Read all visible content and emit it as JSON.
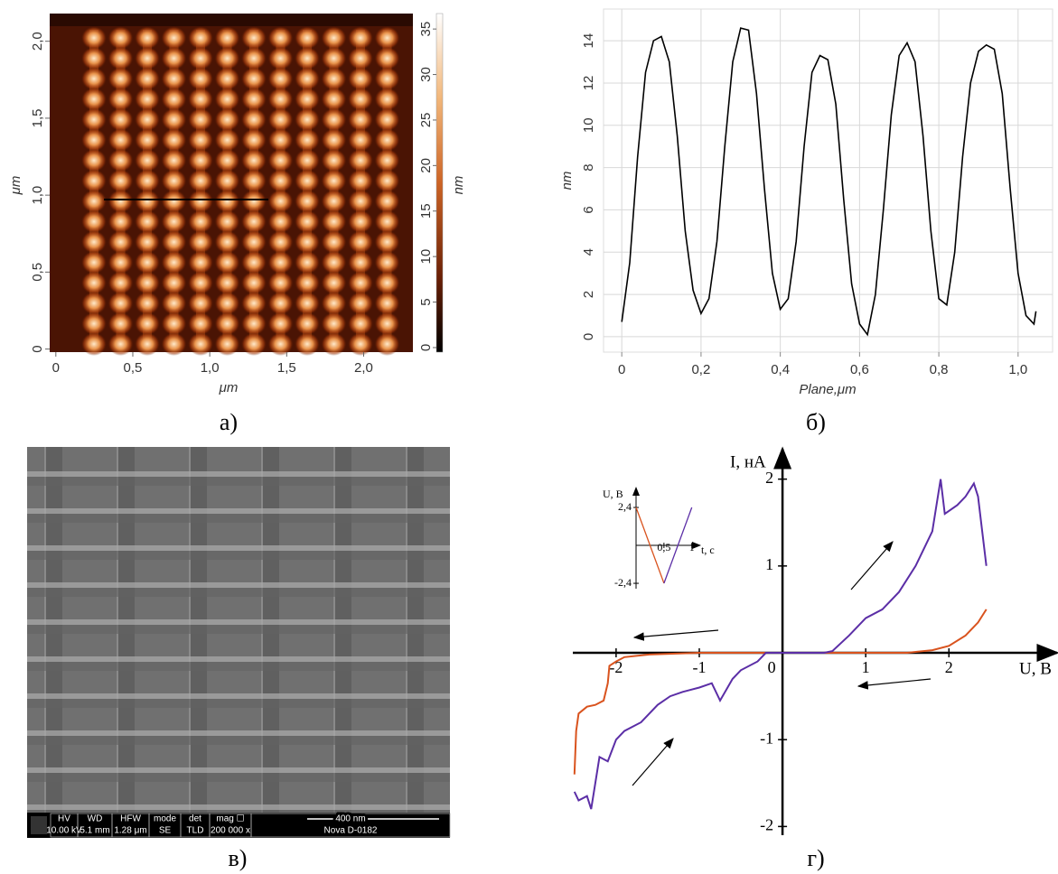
{
  "chart_data": [
    {
      "type": "line",
      "xlabel": "Plane,μm",
      "ylabel": "nm",
      "x": [
        0,
        0.02,
        0.04,
        0.06,
        0.08,
        0.1,
        0.12,
        0.14,
        0.16,
        0.18,
        0.2,
        0.22,
        0.24,
        0.26,
        0.28,
        0.3,
        0.32,
        0.34,
        0.36,
        0.38,
        0.4,
        0.42,
        0.44,
        0.46,
        0.48,
        0.5,
        0.52,
        0.54,
        0.56,
        0.58,
        0.6,
        0.62,
        0.64,
        0.66,
        0.68,
        0.7,
        0.72,
        0.74,
        0.76,
        0.78,
        0.8,
        0.82,
        0.84,
        0.86,
        0.88,
        0.9,
        0.92,
        0.94,
        0.96,
        0.98,
        1.0,
        1.02,
        1.04,
        1.045
      ],
      "series": [
        {
          "color": "#000000",
          "values": [
            0.7,
            3.5,
            8.5,
            12.5,
            14.0,
            14.2,
            13.0,
            9.5,
            5.0,
            2.2,
            1.1,
            1.8,
            4.5,
            9.0,
            13.0,
            14.6,
            14.5,
            11.5,
            7.0,
            3.0,
            1.3,
            1.8,
            4.5,
            9.0,
            12.5,
            13.3,
            13.1,
            11.0,
            6.5,
            2.5,
            0.6,
            0.1,
            2.0,
            6.0,
            10.5,
            13.3,
            13.9,
            13.0,
            9.5,
            5.0,
            1.8,
            1.5,
            4.0,
            8.5,
            12.0,
            13.5,
            13.8,
            13.6,
            11.5,
            7.0,
            3.0,
            1.0,
            0.6,
            1.2
          ]
        }
      ],
      "xlim": [
        -0.046,
        1.087
      ],
      "ylim": [
        -0.73,
        15.5
      ],
      "xticks": [
        0,
        {
          "value": 0.2,
          "label": "0,2"
        },
        {
          "value": 0.4,
          "label": "0,4"
        },
        {
          "value": 0.6,
          "label": "0,6"
        },
        {
          "value": 0.8,
          "label": "0,8"
        },
        {
          "value": 1.0,
          "label": "1,0"
        }
      ],
      "yticks": [
        0,
        2,
        4,
        6,
        8,
        10,
        12,
        14
      ],
      "grid": true
    },
    {
      "type": "line",
      "xlabel": "U, В",
      "ylabel": "I, нА",
      "xlim": [
        -2.52,
        3.3
      ],
      "ylim": [
        -2.1,
        2.35
      ],
      "xticks": [
        -2,
        -1,
        0,
        1,
        2
      ],
      "yticks": [
        -2,
        -1,
        1,
        2
      ],
      "series": [
        {
          "color": "#d9531e",
          "x": [
            -2.5,
            -2.48,
            -2.45,
            -2.35,
            -2.25,
            -2.15,
            -2.1,
            -2.08,
            -2.0,
            -1.9,
            -1.6,
            -1.0,
            0,
            1.5,
            1.8,
            2.0,
            2.2,
            2.35,
            2.45
          ],
          "values": [
            -1.4,
            -0.9,
            -0.7,
            -0.62,
            -0.6,
            -0.55,
            -0.35,
            -0.15,
            -0.1,
            -0.05,
            -0.02,
            0,
            0,
            0,
            0.03,
            0.08,
            0.2,
            0.35,
            0.5
          ]
        },
        {
          "color": "#5b2ea6",
          "x": [
            -2.5,
            -2.45,
            -2.35,
            -2.3,
            -2.25,
            -2.2,
            -2.1,
            -2.0,
            -1.9,
            -1.7,
            -1.5,
            -1.35,
            -1.2,
            -1.0,
            -0.85,
            -0.75,
            -0.6,
            -0.5,
            -0.3,
            -0.2,
            0.5,
            0.6,
            0.8,
            1.0,
            1.2,
            1.4,
            1.6,
            1.8,
            1.85,
            1.9,
            1.95,
            2.1,
            2.2,
            2.3,
            2.35,
            2.4,
            2.45
          ],
          "values": [
            -1.6,
            -1.7,
            -1.65,
            -1.8,
            -1.5,
            -1.2,
            -1.25,
            -1.0,
            -0.9,
            -0.8,
            -0.6,
            -0.5,
            -0.45,
            -0.4,
            -0.35,
            -0.55,
            -0.3,
            -0.2,
            -0.1,
            0,
            0,
            0.02,
            0.2,
            0.4,
            0.5,
            0.7,
            1.0,
            1.4,
            1.7,
            2.0,
            1.6,
            1.7,
            1.8,
            1.95,
            1.8,
            1.4,
            1.0
          ]
        }
      ]
    },
    {
      "type": "line",
      "xlabel": "t, с",
      "ylabel": "U, В",
      "xlim": [
        0,
        1.15
      ],
      "ylim": [
        -2.74,
        3.66
      ],
      "xticks": [
        {
          "value": 0.5,
          "label": "0,5"
        },
        1
      ],
      "yticks": [
        {
          "value": 2.4,
          "label": "2,4"
        },
        {
          "value": -2.4,
          "label": "-2,4"
        }
      ],
      "series": [
        {
          "color": "#d9531e",
          "x": [
            0,
            0.5
          ],
          "values": [
            2.4,
            -2.4
          ]
        },
        {
          "color": "#5b2ea6",
          "x": [
            0.5,
            1.0
          ],
          "values": [
            -2.4,
            2.4
          ]
        }
      ]
    }
  ],
  "afm": {
    "xlabel": "μm",
    "ylabel": "μm",
    "colorbar_label": "nm",
    "xlim": [
      -0.04,
      2.32
    ],
    "ylim": [
      -0.02,
      2.18
    ],
    "xticks": [
      0,
      {
        "value": 0.5,
        "label": "0,5"
      },
      {
        "value": 1.0,
        "label": "1,0"
      },
      {
        "value": 1.5,
        "label": "1,5"
      },
      {
        "value": 2.0,
        "label": "2,0"
      }
    ],
    "yticks": [
      0,
      {
        "value": 0.5,
        "label": "0,5"
      },
      {
        "value": 1.0,
        "label": "1,0"
      },
      {
        "value": 1.5,
        "label": "1,5"
      },
      {
        "value": 2.0,
        "label": "2,0"
      }
    ],
    "colorbar_lim": [
      -0.5,
      36.7
    ],
    "colorbar_ticks": [
      0,
      5,
      10,
      15,
      20,
      25,
      30,
      35
    ]
  },
  "sem": {
    "info_headers": [
      "HV",
      "WD",
      "HFW",
      "mode",
      "det",
      "mag ☐",
      "400 nm"
    ],
    "info_values": [
      "10.00 kV",
      "5.1 mm",
      "1.28 μm",
      "SE",
      "TLD",
      "200 000 x",
      "Nova D-0182"
    ]
  },
  "captions": [
    "а)",
    "б)",
    "в)",
    "г)"
  ]
}
